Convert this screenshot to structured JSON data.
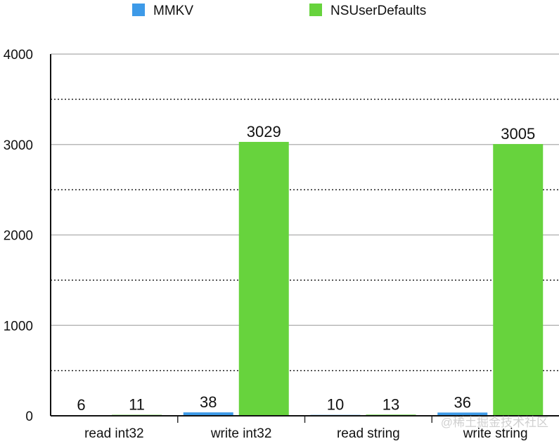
{
  "chart_data": {
    "type": "bar",
    "categories": [
      "read int32",
      "write int32",
      "read string",
      "write string"
    ],
    "series": [
      {
        "name": "MMKV",
        "values": [
          6,
          38,
          10,
          36
        ],
        "color": "#3d9ae8"
      },
      {
        "name": "NSUserDefaults",
        "values": [
          11,
          3029,
          13,
          3005
        ],
        "color": "#67d33d"
      }
    ],
    "ylim": [
      0,
      4000
    ],
    "yticks": [
      "0",
      "1000",
      "2000",
      "3000",
      "4000"
    ],
    "minor_gridlines": [
      500,
      1500,
      2500,
      3500
    ],
    "grid": true,
    "legend_position": "top-center",
    "xlabel": "",
    "ylabel": "",
    "title": ""
  },
  "watermark": "@稀土掘金技术社区"
}
